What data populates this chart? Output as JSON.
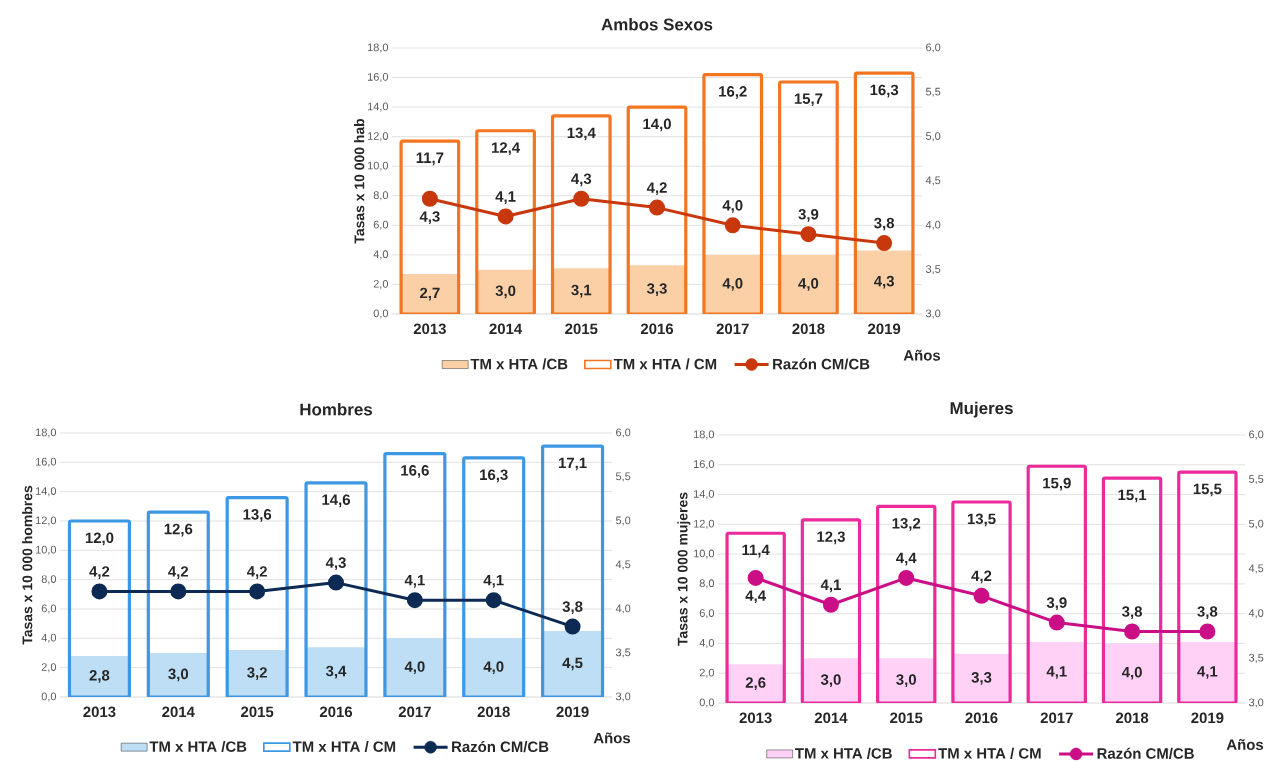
{
  "chart_data": [
    {
      "type": "bar",
      "title": "Ambos Sexos",
      "ylabel": "Tasas x 10 000 hab",
      "xlabel": "Años",
      "categories": [
        "2013",
        "2014",
        "2015",
        "2016",
        "2017",
        "2018",
        "2019"
      ],
      "series": [
        {
          "name": "TM x HTA /CB",
          "color": "#fbd0a6",
          "values": [
            2.7,
            3.0,
            3.1,
            3.3,
            4.0,
            4.0,
            4.3
          ],
          "value_labels": [
            "2,7",
            "3,0",
            "3,1",
            "3,3",
            "4,0",
            "4,0",
            "4,3"
          ]
        },
        {
          "name": "TM x HTA / CM",
          "color": "#f4751f",
          "values": [
            11.7,
            12.4,
            13.4,
            14.0,
            16.2,
            15.7,
            16.3
          ],
          "value_labels": [
            "11,7",
            "12,4",
            "13,4",
            "14,0",
            "16,2",
            "15,7",
            "16,3"
          ]
        },
        {
          "name": "Razón CM/CB",
          "type": "line",
          "axis": "y2",
          "color": "#c8380c",
          "values": [
            4.3,
            4.1,
            4.3,
            4.2,
            4.0,
            3.9,
            3.8
          ],
          "value_labels": [
            "4,3",
            "4,1",
            "4,3",
            "4,2",
            "4,0",
            "3,9",
            "3,8"
          ]
        }
      ],
      "ylim": [
        0,
        18
      ],
      "yticks": [
        {
          "value": 0,
          "label": "0,0"
        },
        {
          "value": 2,
          "label": "2,0"
        },
        {
          "value": 4,
          "label": "4,0"
        },
        {
          "value": 6,
          "label": "6,0"
        },
        {
          "value": 8,
          "label": "8,0"
        },
        {
          "value": 10,
          "label": "10,0"
        },
        {
          "value": 12,
          "label": "12,0"
        },
        {
          "value": 14,
          "label": "14,0"
        },
        {
          "value": 16,
          "label": "16,0"
        },
        {
          "value": 18,
          "label": "18,0"
        }
      ],
      "y2lim": [
        3,
        6
      ],
      "y2ticks": [
        {
          "value": 3,
          "label": "3,0"
        },
        {
          "value": 3.5,
          "label": "3,5"
        },
        {
          "value": 4,
          "label": "4,0"
        },
        {
          "value": 4.5,
          "label": "4,5"
        },
        {
          "value": 5,
          "label": "5,0"
        },
        {
          "value": 5.5,
          "label": "5,5"
        },
        {
          "value": 6,
          "label": "6,0"
        }
      ],
      "grid": "y",
      "legend": "bottom",
      "marker": "circle"
    },
    {
      "type": "bar",
      "title": "Hombres",
      "ylabel": "Tasas x 10 000 hombres",
      "xlabel": "Años",
      "categories": [
        "2013",
        "2014",
        "2015",
        "2016",
        "2017",
        "2018",
        "2019"
      ],
      "series": [
        {
          "name": "TM x HTA /CB",
          "color": "#bddef5",
          "values": [
            2.8,
            3.0,
            3.2,
            3.4,
            4.0,
            4.0,
            4.5
          ],
          "value_labels": [
            "2,8",
            "3,0",
            "3,2",
            "3,4",
            "4,0",
            "4,0",
            "4,5"
          ]
        },
        {
          "name": "TM x HTA / CM",
          "color": "#3d97e2",
          "values": [
            12.0,
            12.6,
            13.6,
            14.6,
            16.6,
            16.3,
            17.1
          ],
          "value_labels": [
            "12,0",
            "12,6",
            "13,6",
            "14,6",
            "16,6",
            "16,3",
            "17,1"
          ]
        },
        {
          "name": "Razón CM/CB",
          "type": "line",
          "axis": "y2",
          "color": "#0d2a55",
          "values": [
            4.2,
            4.2,
            4.2,
            4.3,
            4.1,
            4.1,
            3.8
          ],
          "value_labels": [
            "4,2",
            "4,2",
            "4,2",
            "4,3",
            "4,1",
            "4,1",
            "3,8"
          ]
        }
      ],
      "ylim": [
        0,
        18
      ],
      "yticks": [
        {
          "value": 0,
          "label": "0,0"
        },
        {
          "value": 2,
          "label": "2,0"
        },
        {
          "value": 4,
          "label": "4,0"
        },
        {
          "value": 6,
          "label": "6,0"
        },
        {
          "value": 8,
          "label": "8,0"
        },
        {
          "value": 10,
          "label": "10,0"
        },
        {
          "value": 12,
          "label": "12,0"
        },
        {
          "value": 14,
          "label": "14,0"
        },
        {
          "value": 16,
          "label": "16,0"
        },
        {
          "value": 18,
          "label": "18,0"
        }
      ],
      "y2lim": [
        3,
        6
      ],
      "y2ticks": [
        {
          "value": 3,
          "label": "3,0"
        },
        {
          "value": 3.5,
          "label": "3,5"
        },
        {
          "value": 4,
          "label": "4,0"
        },
        {
          "value": 4.5,
          "label": "4,5"
        },
        {
          "value": 5,
          "label": "5,0"
        },
        {
          "value": 5.5,
          "label": "5,5"
        },
        {
          "value": 6,
          "label": "6,0"
        }
      ],
      "grid": "y",
      "legend": "bottom",
      "marker": "circle"
    },
    {
      "type": "bar",
      "title": "Mujeres",
      "ylabel": "Tasas x 10 000 mujeres",
      "xlabel": "Años",
      "categories": [
        "2013",
        "2014",
        "2015",
        "2016",
        "2017",
        "2018",
        "2019"
      ],
      "series": [
        {
          "name": "TM x HTA /CB",
          "color": "#ffd1f6",
          "values": [
            2.6,
            3.0,
            3.0,
            3.3,
            4.1,
            4.0,
            4.1
          ],
          "value_labels": [
            "2,6",
            "3,0",
            "3,0",
            "3,3",
            "4,1",
            "4,0",
            "4,1"
          ]
        },
        {
          "name": "TM x HTA / CM",
          "color": "#ec2a9b",
          "values": [
            11.4,
            12.3,
            13.2,
            13.5,
            15.9,
            15.1,
            15.5
          ],
          "value_labels": [
            "11,4",
            "12,3",
            "13,2",
            "13,5",
            "15,9",
            "15,1",
            "15,5"
          ]
        },
        {
          "name": "Razón CM/CB",
          "type": "line",
          "axis": "y2",
          "color": "#cc0e86",
          "values": [
            4.4,
            4.1,
            4.4,
            4.2,
            3.9,
            3.8,
            3.8
          ],
          "value_labels": [
            "4,4",
            "4,1",
            "4,4",
            "4,2",
            "3,9",
            "3,8",
            "3,8"
          ]
        }
      ],
      "ylim": [
        0,
        18
      ],
      "yticks": [
        {
          "value": 0,
          "label": "0,0"
        },
        {
          "value": 2,
          "label": "2,0"
        },
        {
          "value": 4,
          "label": "4,0"
        },
        {
          "value": 6,
          "label": "6,0"
        },
        {
          "value": 8,
          "label": "8,0"
        },
        {
          "value": 10,
          "label": "10,0"
        },
        {
          "value": 12,
          "label": "12,0"
        },
        {
          "value": 14,
          "label": "14,0"
        },
        {
          "value": 16,
          "label": "16,0"
        },
        {
          "value": 18,
          "label": "18,0"
        }
      ],
      "y2lim": [
        3,
        6
      ],
      "y2ticks": [
        {
          "value": 3,
          "label": "3,0"
        },
        {
          "value": 3.5,
          "label": "3,5"
        },
        {
          "value": 4,
          "label": "4,0"
        },
        {
          "value": 4.5,
          "label": "4,5"
        },
        {
          "value": 5,
          "label": "5,0"
        },
        {
          "value": 5.5,
          "label": "5,5"
        },
        {
          "value": 6,
          "label": "6,0"
        }
      ],
      "grid": "y",
      "legend": "bottom",
      "marker": "circle"
    }
  ]
}
